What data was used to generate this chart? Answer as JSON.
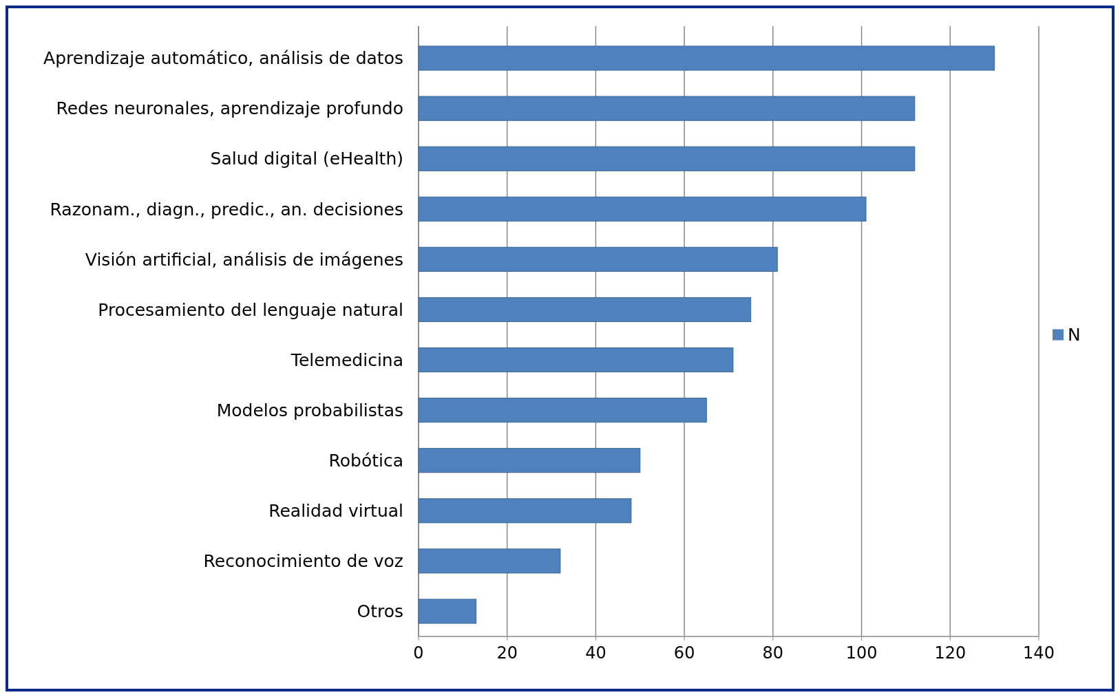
{
  "chart_data": {
    "type": "bar",
    "orientation": "horizontal",
    "categories": [
      "Aprendizaje automático, análisis de datos",
      "Redes neuronales, aprendizaje profundo",
      "Salud digital (eHealth)",
      "Razonam., diagn., predic., an. decisiones",
      "Visión artificial, análisis de imágenes",
      "Procesamiento del lenguaje natural",
      "Telemedicina",
      "Modelos probabilistas",
      "Robótica",
      "Realidad virtual",
      "Reconocimiento de voz",
      "Otros"
    ],
    "series": [
      {
        "name": "N",
        "color": "#4f81bd",
        "values": [
          130,
          112,
          112,
          101,
          81,
          75,
          71,
          65,
          50,
          48,
          32,
          13
        ]
      }
    ],
    "xlim": [
      0,
      140
    ],
    "xticks": [
      0,
      20,
      40,
      60,
      80,
      100,
      120,
      140
    ],
    "grid": "x",
    "legend": "right"
  }
}
